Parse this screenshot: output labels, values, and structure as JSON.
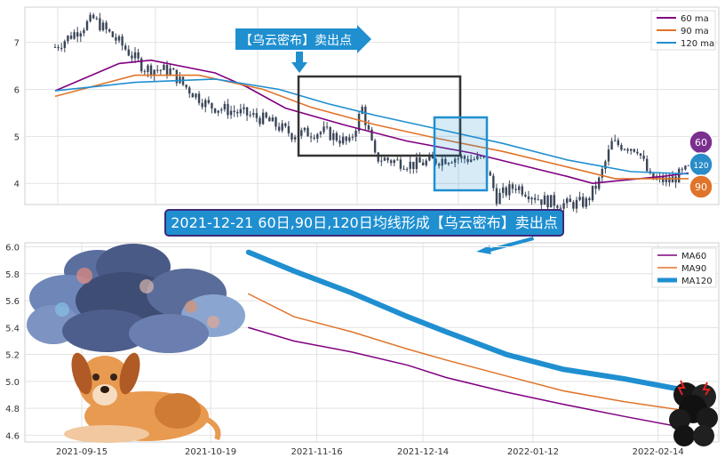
{
  "top_callout": {
    "text": "【乌云密布】卖出点"
  },
  "banner": {
    "text": "2021-12-21 60日,90日,120日均线形成【乌云密布】卖出点"
  },
  "badges": [
    {
      "label": "60",
      "color": "#7b2f8f"
    },
    {
      "label": "120",
      "color": "#2a8cc8"
    },
    {
      "label": "90",
      "color": "#e0742a"
    }
  ],
  "colors": {
    "ma60": "#800080",
    "ma90": "#e0742a",
    "ma120": "#1f8fd0",
    "candle": "#3a4558",
    "box_dark": "#333333",
    "box_blue": "#1f8fd0",
    "cloud_icon": "cloud-icon",
    "dog_icon": "dog-icon",
    "storm_icon": "storm-cloud-icon"
  },
  "chart_data": [
    {
      "type": "line",
      "panel": "top",
      "title": "",
      "xlabel": "",
      "ylabel": "",
      "ylim": [
        3.55,
        7.75
      ],
      "yticks": [
        4,
        5,
        6,
        7
      ],
      "ytick_labels": [
        "4",
        "5",
        "6",
        "7"
      ],
      "grid": true,
      "legend": "top-right",
      "price_close_keypoints": [
        [
          0,
          6.9
        ],
        [
          12,
          7.5
        ],
        [
          20,
          7.0
        ],
        [
          28,
          6.45
        ],
        [
          36,
          6.4
        ],
        [
          40,
          6.1
        ],
        [
          48,
          5.65
        ],
        [
          58,
          5.5
        ],
        [
          66,
          5.35
        ],
        [
          74,
          5.05
        ],
        [
          84,
          5.1
        ],
        [
          92,
          4.85
        ],
        [
          96,
          5.6
        ],
        [
          100,
          4.55
        ],
        [
          112,
          4.4
        ],
        [
          124,
          4.55
        ],
        [
          134,
          4.5
        ],
        [
          138,
          3.7
        ],
        [
          144,
          3.95
        ],
        [
          152,
          3.65
        ],
        [
          160,
          3.55
        ],
        [
          166,
          3.6
        ],
        [
          170,
          4.05
        ],
        [
          174,
          4.85
        ],
        [
          182,
          4.75
        ],
        [
          186,
          4.1
        ],
        [
          192,
          4.05
        ],
        [
          198,
          4.3
        ]
      ],
      "series": [
        {
          "name": "60 ma",
          "points": [
            [
              0,
              5.97
            ],
            [
              20,
              6.55
            ],
            [
              30,
              6.62
            ],
            [
              50,
              6.35
            ],
            [
              60,
              6.05
            ],
            [
              72,
              5.6
            ],
            [
              90,
              5.25
            ],
            [
              110,
              4.9
            ],
            [
              130,
              4.65
            ],
            [
              145,
              4.4
            ],
            [
              160,
              4.15
            ],
            [
              168,
              4.0
            ],
            [
              175,
              4.05
            ],
            [
              190,
              4.15
            ],
            [
              198,
              4.22
            ]
          ]
        },
        {
          "name": "90 ma",
          "points": [
            [
              0,
              5.85
            ],
            [
              25,
              6.3
            ],
            [
              45,
              6.3
            ],
            [
              65,
              6.0
            ],
            [
              80,
              5.62
            ],
            [
              100,
              5.25
            ],
            [
              120,
              4.95
            ],
            [
              140,
              4.68
            ],
            [
              160,
              4.35
            ],
            [
              175,
              4.1
            ],
            [
              198,
              4.1
            ]
          ]
        },
        {
          "name": "120 ma",
          "points": [
            [
              0,
              5.97
            ],
            [
              25,
              6.15
            ],
            [
              50,
              6.22
            ],
            [
              70,
              6.0
            ],
            [
              85,
              5.7
            ],
            [
              100,
              5.45
            ],
            [
              120,
              5.15
            ],
            [
              140,
              4.85
            ],
            [
              160,
              4.5
            ],
            [
              180,
              4.25
            ],
            [
              198,
              4.2
            ]
          ]
        }
      ]
    },
    {
      "type": "line",
      "panel": "bottom",
      "title": "",
      "xlabel": "",
      "ylabel": "",
      "x_range": [
        "2021-08-31",
        "2022-03-02"
      ],
      "xticks": [
        "2021-09-15",
        "2021-10-19",
        "2021-11-16",
        "2021-12-14",
        "2022-01-12",
        "2022-02-14"
      ],
      "ylim": [
        4.55,
        6.03
      ],
      "yticks": [
        4.6,
        4.8,
        5.0,
        5.2,
        5.4,
        5.6,
        5.8,
        6.0
      ],
      "ytick_labels": [
        "4.6",
        "4.8",
        "5.0",
        "5.2",
        "5.4",
        "5.6",
        "5.8",
        "6.0"
      ],
      "grid": true,
      "legend": "top-right",
      "series": [
        {
          "name": "MA60",
          "points": [
            [
              "2021-10-29",
              5.4
            ],
            [
              "2021-11-10",
              5.3
            ],
            [
              "2021-11-25",
              5.22
            ],
            [
              "2021-12-10",
              5.12
            ],
            [
              "2021-12-20",
              5.03
            ],
            [
              "2022-01-05",
              4.92
            ],
            [
              "2022-01-20",
              4.83
            ],
            [
              "2022-02-05",
              4.74
            ],
            [
              "2022-02-22",
              4.65
            ]
          ]
        },
        {
          "name": "MA90",
          "points": [
            [
              "2021-10-29",
              5.65
            ],
            [
              "2021-11-10",
              5.48
            ],
            [
              "2021-11-25",
              5.37
            ],
            [
              "2021-12-10",
              5.24
            ],
            [
              "2021-12-20",
              5.16
            ],
            [
              "2022-01-05",
              5.04
            ],
            [
              "2022-01-20",
              4.93
            ],
            [
              "2022-02-05",
              4.85
            ],
            [
              "2022-02-22",
              4.78
            ]
          ]
        },
        {
          "name": "MA120",
          "points": [
            [
              "2021-10-29",
              5.96
            ],
            [
              "2021-11-10",
              5.82
            ],
            [
              "2021-11-25",
              5.66
            ],
            [
              "2021-12-10",
              5.48
            ],
            [
              "2021-12-20",
              5.37
            ],
            [
              "2022-01-05",
              5.2
            ],
            [
              "2022-01-20",
              5.09
            ],
            [
              "2022-02-05",
              5.02
            ],
            [
              "2022-02-22",
              4.93
            ]
          ]
        }
      ]
    }
  ]
}
